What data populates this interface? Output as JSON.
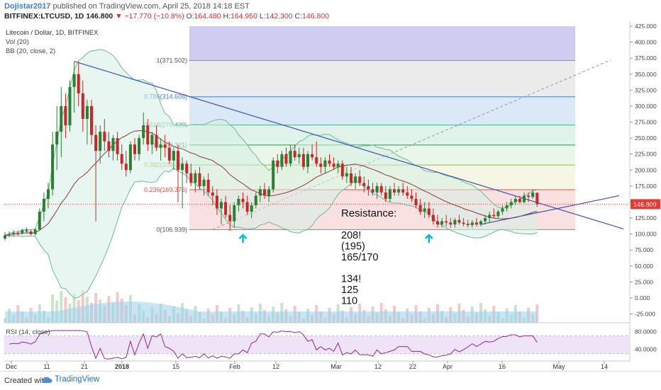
{
  "header": {
    "author": "Dojistar2017",
    "published": "published on TradingView.com, April 25, 2018 14:18 EST",
    "symbol": "BITFINEX:LTCUSD, 1D",
    "last": "146.800",
    "change": "▼ −17.770 (−10.8%)",
    "open_label": "O:",
    "open": "164.480",
    "high_label": "H:",
    "high": "164.950",
    "low_label": "L:",
    "low": "142.300",
    "close_label": "C:",
    "close": "146.800"
  },
  "legend": {
    "title": "Litecoin / Dollar, 1D, BITFINEX",
    "vol": "Vol (20)",
    "bb": "BB (20, close, 2)",
    "rsi": "RSI (14, close)"
  },
  "footer": {
    "created_with": "Created with",
    "brand": "TradingView"
  },
  "colors": {
    "up": "#2e7d32",
    "down": "#c62828",
    "bb": "#6fb89a",
    "basis": "#8b3a3a",
    "trendline": "#3f51b5",
    "volume": "#9ad0ee",
    "rsi": "#8e2a8e",
    "price_tag": "#e53935",
    "arrow": "#00bcd4"
  },
  "chart_data": {
    "type": "candlestick",
    "title": "Litecoin / Dollar, 1D, BITFINEX",
    "ylim": [
      -35,
      430
    ],
    "y_ticks": [
      "425.000",
      "400.000",
      "375.000",
      "350.000",
      "325.000",
      "300.000",
      "275.000",
      "250.000",
      "225.000",
      "200.000",
      "175.000",
      "150.000",
      "125.000",
      "100.000",
      "75.000",
      "50.000",
      "25.000",
      "0.000",
      "-25.000"
    ],
    "x_ticks": [
      "Dec",
      "11",
      "21",
      "2018",
      "15",
      "Feb",
      "12",
      "Mar",
      "12",
      "22",
      "Apr",
      "16",
      "May",
      "14"
    ],
    "current_price": "146.800",
    "fibonacci": [
      {
        "label": "1(371.502)",
        "value": 371.502
      },
      {
        "label": "0.786(314.605)",
        "value": 314.605
      },
      {
        "label": "0.618(270.439)",
        "value": 270.439
      },
      {
        "label": "0.5(239.221)",
        "value": 239.221
      },
      {
        "label": "0.382(208.002)",
        "value": 208.002
      },
      {
        "label": "0.236(169.376)",
        "value": 169.376
      },
      {
        "label": "0(106.939)",
        "value": 106.939
      }
    ],
    "annotation": {
      "title": "Resistance:",
      "lines": [
        "208!",
        "(195)",
        "165/170",
        "",
        "134!",
        "125",
        "110"
      ]
    },
    "candles": [
      [
        93,
        103,
        90,
        98
      ],
      [
        98,
        104,
        95,
        100
      ],
      [
        100,
        106,
        96,
        102
      ],
      [
        102,
        105,
        98,
        101
      ],
      [
        101,
        108,
        99,
        106
      ],
      [
        106,
        110,
        101,
        104
      ],
      [
        104,
        107,
        98,
        100
      ],
      [
        100,
        109,
        98,
        107
      ],
      [
        107,
        140,
        105,
        135
      ],
      [
        135,
        165,
        120,
        155
      ],
      [
        155,
        180,
        140,
        170
      ],
      [
        170,
        260,
        160,
        240
      ],
      [
        240,
        300,
        200,
        260
      ],
      [
        260,
        330,
        220,
        300
      ],
      [
        300,
        320,
        250,
        270
      ],
      [
        270,
        340,
        260,
        330
      ],
      [
        330,
        370,
        290,
        350
      ],
      [
        350,
        370,
        300,
        320
      ],
      [
        320,
        340,
        260,
        280
      ],
      [
        280,
        310,
        240,
        300
      ],
      [
        300,
        310,
        240,
        255
      ],
      [
        255,
        270,
        120,
        230
      ],
      [
        230,
        270,
        210,
        260
      ],
      [
        260,
        280,
        230,
        245
      ],
      [
        245,
        260,
        220,
        230
      ],
      [
        230,
        255,
        215,
        250
      ],
      [
        250,
        260,
        215,
        225
      ],
      [
        225,
        240,
        200,
        210
      ],
      [
        210,
        230,
        190,
        200
      ],
      [
        200,
        245,
        195,
        240
      ],
      [
        240,
        250,
        215,
        225
      ],
      [
        225,
        255,
        215,
        250
      ],
      [
        250,
        290,
        240,
        270
      ],
      [
        270,
        280,
        230,
        240
      ],
      [
        240,
        260,
        225,
        255
      ],
      [
        255,
        270,
        230,
        235
      ],
      [
        235,
        250,
        215,
        240
      ],
      [
        240,
        255,
        220,
        235
      ],
      [
        235,
        245,
        210,
        215
      ],
      [
        215,
        235,
        200,
        230
      ],
      [
        230,
        240,
        150,
        200
      ],
      [
        200,
        220,
        140,
        210
      ],
      [
        210,
        215,
        180,
        195
      ],
      [
        195,
        210,
        175,
        180
      ],
      [
        180,
        200,
        165,
        195
      ],
      [
        195,
        205,
        170,
        175
      ],
      [
        175,
        190,
        160,
        185
      ],
      [
        185,
        195,
        160,
        165
      ],
      [
        165,
        175,
        145,
        160
      ],
      [
        160,
        170,
        130,
        140
      ],
      [
        140,
        155,
        115,
        150
      ],
      [
        150,
        160,
        125,
        130
      ],
      [
        130,
        145,
        105,
        120
      ],
      [
        120,
        150,
        110,
        145
      ],
      [
        145,
        160,
        135,
        155
      ],
      [
        155,
        165,
        140,
        150
      ],
      [
        150,
        160,
        130,
        135
      ],
      [
        135,
        150,
        125,
        145
      ],
      [
        145,
        165,
        140,
        160
      ],
      [
        160,
        175,
        150,
        170
      ],
      [
        170,
        180,
        155,
        160
      ],
      [
        160,
        175,
        150,
        170
      ],
      [
        170,
        220,
        165,
        215
      ],
      [
        215,
        225,
        195,
        205
      ],
      [
        205,
        230,
        200,
        225
      ],
      [
        225,
        235,
        205,
        210
      ],
      [
        210,
        240,
        205,
        230
      ],
      [
        230,
        240,
        215,
        220
      ],
      [
        220,
        235,
        210,
        225
      ],
      [
        225,
        235,
        200,
        205
      ],
      [
        205,
        230,
        195,
        225
      ],
      [
        225,
        240,
        215,
        220
      ],
      [
        220,
        245,
        205,
        210
      ],
      [
        210,
        220,
        195,
        205
      ],
      [
        205,
        220,
        195,
        215
      ],
      [
        215,
        225,
        205,
        210
      ],
      [
        210,
        220,
        200,
        205
      ],
      [
        205,
        215,
        195,
        210
      ],
      [
        210,
        215,
        185,
        190
      ],
      [
        190,
        205,
        180,
        195
      ],
      [
        195,
        205,
        175,
        180
      ],
      [
        180,
        195,
        170,
        190
      ],
      [
        190,
        200,
        175,
        180
      ],
      [
        180,
        190,
        165,
        175
      ],
      [
        175,
        185,
        160,
        170
      ],
      [
        170,
        180,
        160,
        165
      ],
      [
        165,
        180,
        155,
        175
      ],
      [
        175,
        180,
        160,
        165
      ],
      [
        165,
        175,
        150,
        155
      ],
      [
        155,
        175,
        150,
        170
      ],
      [
        170,
        180,
        160,
        165
      ],
      [
        165,
        175,
        160,
        170
      ],
      [
        170,
        180,
        160,
        165
      ],
      [
        165,
        175,
        155,
        160
      ],
      [
        160,
        170,
        150,
        155
      ],
      [
        155,
        165,
        140,
        145
      ],
      [
        145,
        155,
        130,
        135
      ],
      [
        135,
        150,
        125,
        140
      ],
      [
        140,
        150,
        125,
        130
      ],
      [
        130,
        140,
        115,
        120
      ],
      [
        120,
        130,
        110,
        115
      ],
      [
        115,
        125,
        110,
        120
      ],
      [
        120,
        130,
        112,
        118
      ],
      [
        118,
        125,
        110,
        115
      ],
      [
        115,
        125,
        110,
        122
      ],
      [
        122,
        130,
        115,
        118
      ],
      [
        118,
        125,
        112,
        116
      ],
      [
        116,
        122,
        110,
        114
      ],
      [
        114,
        122,
        110,
        118
      ],
      [
        118,
        125,
        112,
        115
      ],
      [
        115,
        122,
        112,
        120
      ],
      [
        120,
        130,
        115,
        125
      ],
      [
        125,
        135,
        118,
        130
      ],
      [
        130,
        140,
        125,
        128
      ],
      [
        128,
        138,
        125,
        135
      ],
      [
        135,
        145,
        130,
        140
      ],
      [
        140,
        150,
        135,
        145
      ],
      [
        145,
        155,
        140,
        150
      ],
      [
        150,
        160,
        145,
        155
      ],
      [
        155,
        160,
        148,
        150
      ],
      [
        150,
        165,
        148,
        160
      ],
      [
        160,
        165,
        150,
        158
      ],
      [
        158,
        170,
        155,
        165
      ],
      [
        164.48,
        164.95,
        142.3,
        146.8
      ]
    ],
    "trendline_price": [
      [
        16,
        370
      ],
      [
        143,
        108
      ]
    ],
    "trendline_support": [
      [
        110,
        115
      ],
      [
        142,
        160
      ]
    ],
    "fib_diagonal": [
      [
        48,
        107
      ],
      [
        140,
        372
      ]
    ],
    "arrows_at": [
      55,
      98
    ],
    "rsi_ticks": [
      "80.0000",
      "40.0000"
    ]
  }
}
